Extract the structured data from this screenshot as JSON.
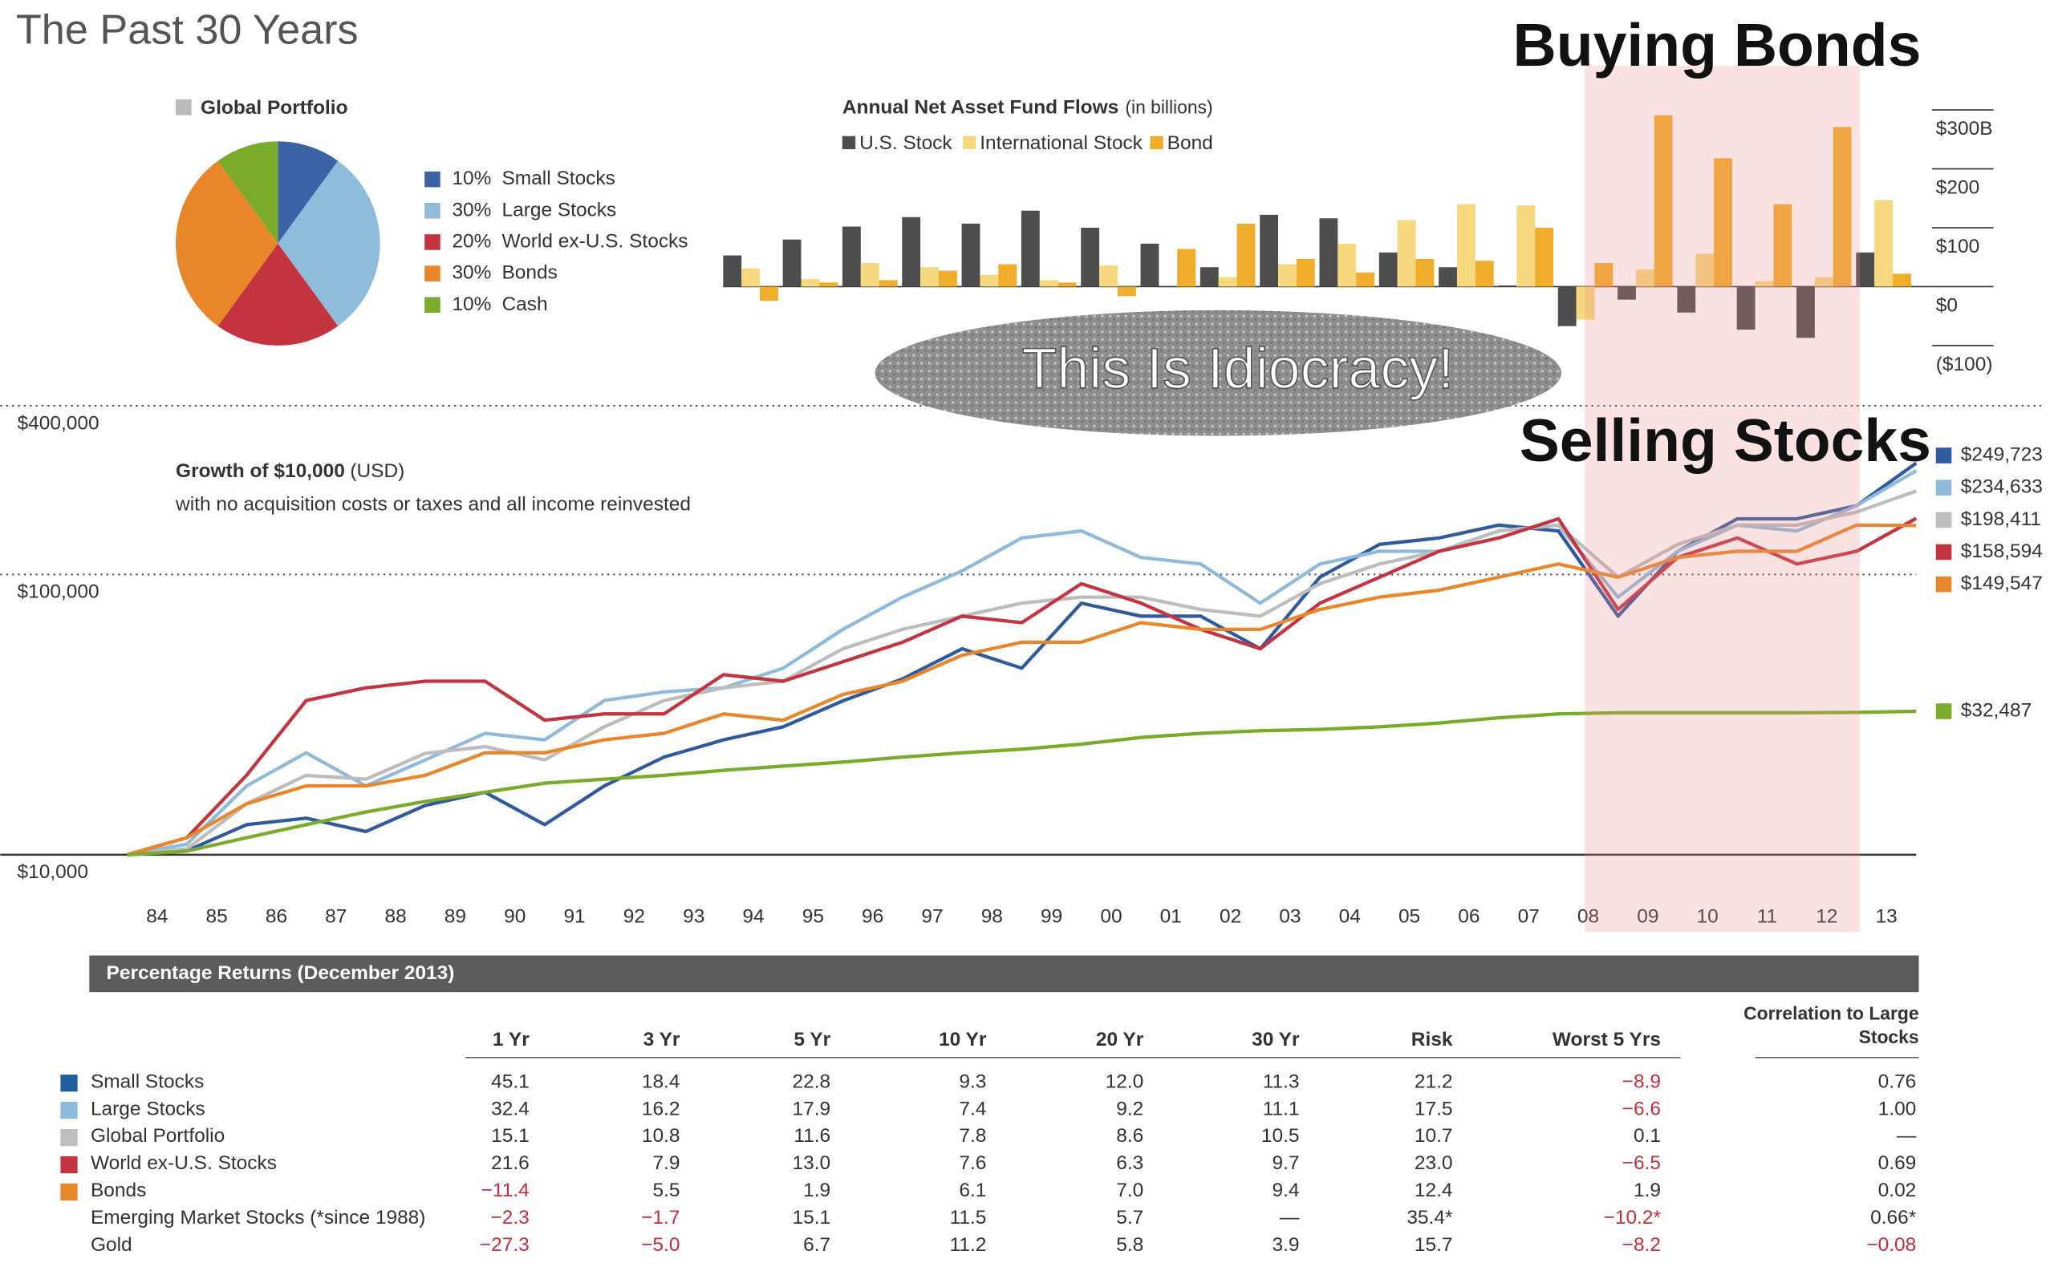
{
  "title": "The Past 30 Years",
  "annotations": [
    "Buying Bonds",
    "This Is Idiocracy!",
    "Selling Stocks"
  ],
  "chart_data": [
    {
      "type": "pie",
      "title": "Global Portfolio",
      "categories": [
        "Small Stocks",
        "Large Stocks",
        "World ex-U.S. Stocks",
        "Bonds",
        "Cash"
      ],
      "values": [
        10,
        30,
        20,
        30,
        10
      ],
      "value_labels": [
        "10%",
        "30%",
        "20%",
        "30%",
        "10%"
      ],
      "colors": [
        "#3b63a6",
        "#90bcdc",
        "#c4343f",
        "#e9862a",
        "#7aab2b"
      ]
    },
    {
      "type": "bar",
      "title": "Annual Net Asset Fund Flows",
      "subtitle": "(in billions)",
      "categories": [
        null,
        null,
        null,
        null,
        null,
        null,
        null,
        null,
        null,
        null,
        null,
        null,
        null,
        null,
        null,
        null,
        null,
        null,
        null,
        null
      ],
      "series": [
        {
          "name": "U.S. Stock",
          "color": "#4d4d4d",
          "values": [
            53,
            80,
            102,
            118,
            107,
            129,
            100,
            73,
            33,
            122,
            116,
            58,
            33,
            2,
            -67,
            -22,
            -44,
            -73,
            -87,
            58
          ]
        },
        {
          "name": "International Stock",
          "color": "#f6d87e",
          "values": [
            31,
            13,
            40,
            33,
            20,
            11,
            36,
            0,
            16,
            38,
            73,
            113,
            140,
            138,
            -56,
            29,
            56,
            9,
            16,
            147
          ]
        },
        {
          "name": "Bond",
          "color": "#f0ad2c",
          "values": [
            -24,
            7,
            11,
            27,
            38,
            7,
            -16,
            64,
            107,
            47,
            24,
            47,
            44,
            100,
            40,
            291,
            218,
            140,
            271,
            22
          ]
        }
      ],
      "ylim": [
        -100,
        300
      ],
      "yticks": [
        {
          "value": 300,
          "label": "$300B"
        },
        {
          "value": 200,
          "label": "$200"
        },
        {
          "value": 100,
          "label": "$100"
        },
        {
          "value": 0,
          "label": "$0"
        },
        {
          "value": -100,
          "label": "($100)"
        }
      ],
      "grid": true
    },
    {
      "type": "line",
      "title": "Growth of $10,000",
      "title_note": "(USD)",
      "subtitle": "with no acquisition costs or taxes and all income reinvested",
      "log_scale": true,
      "x": [
        1984,
        1985,
        1986,
        1987,
        1988,
        1989,
        1990,
        1991,
        1992,
        1993,
        1994,
        1995,
        1996,
        1997,
        1998,
        1999,
        2000,
        2001,
        2002,
        2003,
        2004,
        2005,
        2006,
        2007,
        2008,
        2009,
        2010,
        2011,
        2012,
        2013,
        2014
      ],
      "xlim": [
        1984,
        2014
      ],
      "xticks": [
        {
          "value": 1984.5,
          "label": "84"
        },
        {
          "value": 1985.5,
          "label": "85"
        },
        {
          "value": 1986.5,
          "label": "86"
        },
        {
          "value": 1987.5,
          "label": "87"
        },
        {
          "value": 1988.5,
          "label": "88"
        },
        {
          "value": 1989.5,
          "label": "89"
        },
        {
          "value": 1990.5,
          "label": "90"
        },
        {
          "value": 1991.5,
          "label": "91"
        },
        {
          "value": 1992.5,
          "label": "92"
        },
        {
          "value": 1993.5,
          "label": "93"
        },
        {
          "value": 1994.5,
          "label": "94"
        },
        {
          "value": 1995.5,
          "label": "95"
        },
        {
          "value": 1996.5,
          "label": "96"
        },
        {
          "value": 1997.5,
          "label": "97"
        },
        {
          "value": 1998.5,
          "label": "98"
        },
        {
          "value": 1999.5,
          "label": "99"
        },
        {
          "value": 2000.5,
          "label": "00"
        },
        {
          "value": 2001.5,
          "label": "01"
        },
        {
          "value": 2002.5,
          "label": "02"
        },
        {
          "value": 2003.5,
          "label": "03"
        },
        {
          "value": 2004.5,
          "label": "04"
        },
        {
          "value": 2005.5,
          "label": "05"
        },
        {
          "value": 2006.5,
          "label": "06"
        },
        {
          "value": 2007.5,
          "label": "07"
        },
        {
          "value": 2008.5,
          "label": "08"
        },
        {
          "value": 2009.5,
          "label": "09"
        },
        {
          "value": 2010.5,
          "label": "10"
        },
        {
          "value": 2011.5,
          "label": "11"
        },
        {
          "value": 2012.5,
          "label": "12"
        },
        {
          "value": 2013.5,
          "label": "13"
        }
      ],
      "ylim": [
        10000,
        400000
      ],
      "yticks": [
        {
          "value": 10000,
          "label": "$10,000"
        },
        {
          "value": 100000,
          "label": "$100,000"
        },
        {
          "value": 400000,
          "label": "$400,000"
        }
      ],
      "series": [
        {
          "color": "#2f5a9e",
          "values": [
            10000,
            10330,
            12800,
            13500,
            12100,
            15000,
            16700,
            12800,
            17600,
            22300,
            25700,
            28600,
            35400,
            42400,
            54300,
            46300,
            79000,
            71000,
            71000,
            54300,
            97800,
            128000,
            135000,
            150000,
            143000,
            71000,
            121000,
            158000,
            158000,
            176000,
            249723
          ],
          "value_labels": [
            null,
            null,
            null,
            null,
            null,
            null,
            null,
            null,
            null,
            null,
            null,
            null,
            null,
            null,
            null,
            null,
            null,
            null,
            null,
            null,
            null,
            null,
            null,
            null,
            null,
            null,
            null,
            null,
            null,
            null,
            "$249,723"
          ]
        },
        {
          "color": "#8ebbdb",
          "values": [
            10000,
            10900,
            17600,
            23100,
            17600,
            21800,
            27100,
            25700,
            35500,
            38100,
            39400,
            46300,
            63700,
            83000,
            103000,
            135000,
            143000,
            115000,
            109000,
            79000,
            109000,
            121000,
            121000,
            143000,
            150000,
            83000,
            121000,
            150000,
            143000,
            176000,
            234633
          ],
          "value_labels": [
            null,
            null,
            null,
            null,
            null,
            null,
            null,
            null,
            null,
            null,
            null,
            null,
            null,
            null,
            null,
            null,
            null,
            null,
            null,
            null,
            null,
            null,
            null,
            null,
            null,
            null,
            null,
            null,
            null,
            null,
            "$234,633"
          ]
        },
        {
          "color": "#bdbdbd",
          "values": [
            10000,
            10500,
            15200,
            19200,
            18600,
            23000,
            24300,
            21800,
            28600,
            35500,
            39400,
            41600,
            54300,
            63700,
            71000,
            79000,
            83000,
            83000,
            75000,
            71000,
            92700,
            109000,
            121000,
            143000,
            150000,
            97800,
            128000,
            150000,
            150000,
            167000,
            198411
          ],
          "value_labels": [
            null,
            null,
            null,
            null,
            null,
            null,
            null,
            null,
            null,
            null,
            null,
            null,
            null,
            null,
            null,
            null,
            null,
            null,
            null,
            null,
            null,
            null,
            null,
            null,
            null,
            null,
            null,
            null,
            null,
            null,
            "$198,411"
          ]
        },
        {
          "color": "#c4343f",
          "values": [
            10000,
            11500,
            19200,
            35500,
            39400,
            41600,
            41600,
            30200,
            31800,
            31800,
            43900,
            41600,
            48800,
            57300,
            71000,
            67300,
            92700,
            79000,
            63700,
            54300,
            79000,
            97800,
            121000,
            135000,
            158000,
            75000,
            115000,
            135000,
            109000,
            121000,
            158594
          ],
          "value_labels": [
            null,
            null,
            null,
            null,
            null,
            null,
            null,
            null,
            null,
            null,
            null,
            null,
            null,
            null,
            null,
            null,
            null,
            null,
            null,
            null,
            null,
            null,
            null,
            null,
            null,
            null,
            null,
            null,
            null,
            null,
            "$158,594"
          ]
        },
        {
          "color": "#e9862a",
          "values": [
            10000,
            11500,
            15200,
            17600,
            17600,
            19200,
            23100,
            23100,
            25700,
            27100,
            31800,
            30200,
            37300,
            41600,
            51500,
            57300,
            57300,
            67300,
            63700,
            63700,
            75000,
            83000,
            87900,
            97800,
            109000,
            97800,
            115000,
            121000,
            121000,
            150000,
            149547
          ],
          "value_labels": [
            null,
            null,
            null,
            null,
            null,
            null,
            null,
            null,
            null,
            null,
            null,
            null,
            null,
            null,
            null,
            null,
            null,
            null,
            null,
            null,
            null,
            null,
            null,
            null,
            null,
            null,
            null,
            null,
            null,
            null,
            "$149,547"
          ]
        },
        {
          "color": "#7aab2b",
          "values": [
            10000,
            10300,
            11500,
            12800,
            14200,
            15500,
            16700,
            18000,
            18600,
            19200,
            20000,
            20700,
            21400,
            22300,
            23100,
            23800,
            24800,
            26200,
            27100,
            27700,
            28000,
            28600,
            29500,
            30800,
            31800,
            32100,
            32100,
            32100,
            32100,
            32200,
            32487
          ],
          "value_labels": [
            null,
            null,
            null,
            null,
            null,
            null,
            null,
            null,
            null,
            null,
            null,
            null,
            null,
            null,
            null,
            null,
            null,
            null,
            null,
            null,
            null,
            null,
            null,
            null,
            null,
            null,
            null,
            null,
            null,
            null,
            "$32,487"
          ]
        }
      ]
    }
  ],
  "table": {
    "title": "Percentage Returns (December 2013)",
    "columns": [
      "1 Yr",
      "3 Yr",
      "5 Yr",
      "10 Yr",
      "20 Yr",
      "30 Yr",
      "Risk",
      "Worst 5 Yrs",
      "Correlation to Large Stocks"
    ],
    "rows": [
      {
        "name": "Small Stocks",
        "color": "#1f5fa0",
        "values": [
          "45.1",
          "18.4",
          "22.8",
          "9.3",
          "12.0",
          "11.3",
          "21.2",
          "−8.9",
          "0.76"
        ]
      },
      {
        "name": "Large Stocks",
        "color": "#8ebbdb",
        "values": [
          "32.4",
          "16.2",
          "17.9",
          "7.4",
          "9.2",
          "11.1",
          "17.5",
          "−6.6",
          "1.00"
        ]
      },
      {
        "name": "Global Portfolio",
        "color": "#bdbdbd",
        "values": [
          "15.1",
          "10.8",
          "11.6",
          "7.8",
          "8.6",
          "10.5",
          "10.7",
          "0.1",
          "—"
        ]
      },
      {
        "name": "World ex-U.S. Stocks",
        "color": "#c4343f",
        "values": [
          "21.6",
          "7.9",
          "13.0",
          "7.6",
          "6.3",
          "9.7",
          "23.0",
          "−6.5",
          "0.69"
        ]
      },
      {
        "name": "Bonds",
        "color": "#e9862a",
        "values": [
          "−11.4",
          "5.5",
          "1.9",
          "6.1",
          "7.0",
          "9.4",
          "12.4",
          "1.9",
          "0.02"
        ]
      },
      {
        "name": "Emerging Market Stocks (*since 1988)",
        "values": [
          "−2.3",
          "−1.7",
          "15.1",
          "11.5",
          "5.7",
          "—",
          "35.4*",
          "−10.2*",
          "0.66*"
        ]
      },
      {
        "name": "Gold",
        "values": [
          "−27.3",
          "−5.0",
          "6.7",
          "11.2",
          "5.8",
          "3.9",
          "15.7",
          "−8.2",
          "−0.08"
        ]
      }
    ]
  }
}
